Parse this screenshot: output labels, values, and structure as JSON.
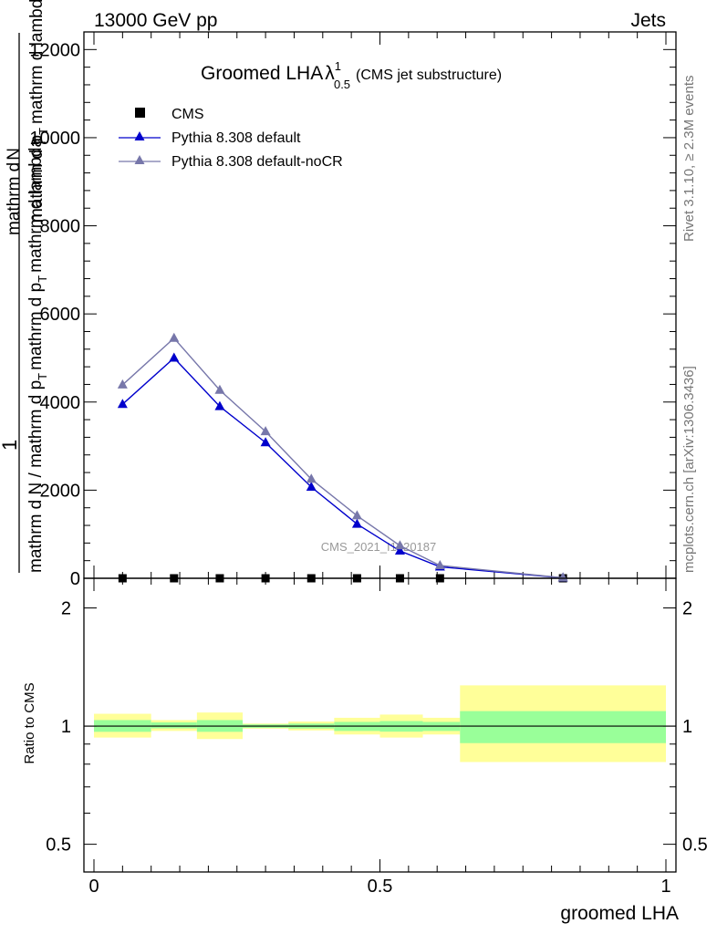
{
  "header": {
    "left": "13000 GeV pp",
    "right": "Jets"
  },
  "side": {
    "rivet": "Rivet 3.1.10, ≥ 2.3M events",
    "mcplots": "mcplots.cern.ch [arXiv:1306.3436]"
  },
  "chart_data": [
    {
      "type": "line",
      "title": {
        "main": "Groomed LHA",
        "lambda": "λ",
        "sup": "1",
        "sub": "0.5",
        "note": "(CMS jet substructure)"
      },
      "watermark": "CMS_2021_I1920187",
      "ylabel": {
        "one": "1",
        "top1": "mathrm d",
        "top2": "N",
        "top3": "mathrm d p",
        "top4": "T",
        "top5": "mathrm d lambda",
        "bottom1": "mathrm d N / mathrm d p",
        "bottom2": "T",
        "bottom3": "mathrm d p",
        "bottom4": "T",
        "bottom5": "mathrm d lambda"
      },
      "xlim": [
        0,
        1
      ],
      "ylim": [
        0,
        12400
      ],
      "yticks": [
        0,
        2000,
        4000,
        6000,
        8000,
        10000,
        12000
      ],
      "ytick_labels": [
        "0",
        "2000",
        "4000",
        "6000",
        "8000",
        "10000",
        "12000"
      ],
      "legend": [
        "CMS",
        "Pythia 8.308 default",
        "Pythia 8.308 default-noCR"
      ],
      "legend_placement": "top-left",
      "series": [
        {
          "name": "CMS",
          "marker": "square",
          "color": "#000000",
          "x": [
            0.05,
            0.14,
            0.22,
            0.3,
            0.38,
            0.46,
            0.535,
            0.605,
            0.82
          ],
          "y": [
            0,
            0,
            0,
            0,
            0,
            0,
            0,
            0,
            0
          ]
        },
        {
          "name": "Pythia 8.308 default",
          "marker": "triangle",
          "color": "#0000cc",
          "x": [
            0.05,
            0.14,
            0.22,
            0.3,
            0.38,
            0.46,
            0.535,
            0.605,
            0.82
          ],
          "y": [
            3950,
            5000,
            3900,
            3080,
            2070,
            1230,
            620,
            260,
            10
          ]
        },
        {
          "name": "Pythia 8.308 default-noCR",
          "marker": "triangle",
          "color": "#7777aa",
          "x": [
            0.05,
            0.14,
            0.22,
            0.3,
            0.38,
            0.46,
            0.535,
            0.605,
            0.82
          ],
          "y": [
            4390,
            5450,
            4270,
            3330,
            2250,
            1420,
            740,
            290,
            12
          ]
        }
      ]
    },
    {
      "type": "area",
      "ylabel": "Ratio to CMS",
      "xlabel": "groomed LHA",
      "xlim": [
        0,
        1
      ],
      "ylim": [
        0.425,
        2.38
      ],
      "log_scale_y": true,
      "yticks_labeled": [
        0.5,
        1,
        2
      ],
      "ytick_labels": [
        "0.5",
        "1",
        "2"
      ],
      "xticks_labeled": [
        0,
        0.5,
        1
      ],
      "xtick_labels": [
        "0",
        "0.5",
        "1"
      ],
      "reference_line": 1,
      "band_colors": {
        "inner": "#99ff99",
        "outer": "#ffff99"
      },
      "bins": [
        {
          "lo": 0.0,
          "hi": 0.1,
          "inner": [
            0.967,
            1.036
          ],
          "outer": [
            0.935,
            1.075
          ]
        },
        {
          "lo": 0.1,
          "hi": 0.18,
          "inner": [
            0.987,
            1.022
          ],
          "outer": [
            0.972,
            1.036
          ]
        },
        {
          "lo": 0.18,
          "hi": 0.26,
          "inner": [
            0.967,
            1.036
          ],
          "outer": [
            0.927,
            1.083
          ]
        },
        {
          "lo": 0.26,
          "hi": 0.34,
          "inner": [
            0.99,
            1.01
          ],
          "outer": [
            0.985,
            1.015
          ]
        },
        {
          "lo": 0.34,
          "hi": 0.42,
          "inner": [
            0.986,
            1.015
          ],
          "outer": [
            0.975,
            1.027
          ]
        },
        {
          "lo": 0.42,
          "hi": 0.5,
          "inner": [
            0.972,
            1.025
          ],
          "outer": [
            0.952,
            1.05
          ]
        },
        {
          "lo": 0.5,
          "hi": 0.575,
          "inner": [
            0.968,
            1.03
          ],
          "outer": [
            0.935,
            1.07
          ]
        },
        {
          "lo": 0.575,
          "hi": 0.64,
          "inner": [
            0.972,
            1.025
          ],
          "outer": [
            0.952,
            1.05
          ]
        },
        {
          "lo": 0.64,
          "hi": 1.0,
          "inner": [
            0.905,
            1.092
          ],
          "outer": [
            0.81,
            1.27
          ]
        }
      ]
    }
  ]
}
